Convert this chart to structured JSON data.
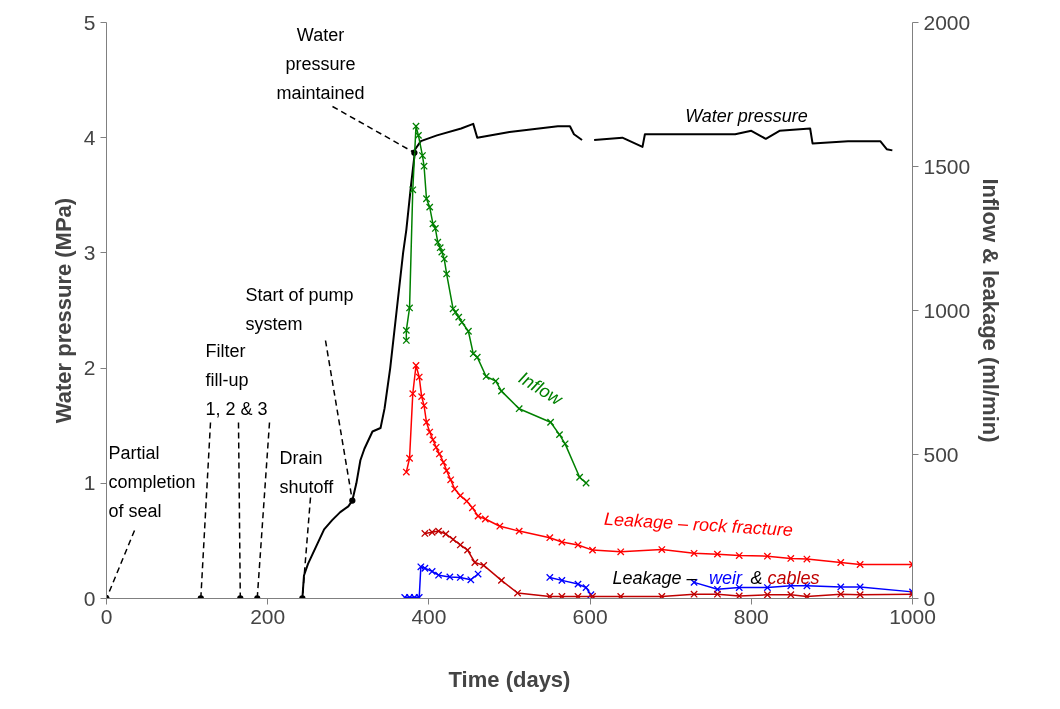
{
  "chart_data": {
    "type": "line",
    "xlabel": "Time (days)",
    "ylabel": "Water pressure (MPa)",
    "y2label": "Inflow & leakage (ml/min)",
    "xlim": [
      0,
      1000
    ],
    "xticks": [
      0,
      200,
      400,
      600,
      800,
      1000
    ],
    "ylim": [
      0,
      5
    ],
    "yticks": [
      0,
      1,
      2,
      3,
      4,
      5
    ],
    "y2lim": [
      0,
      2000
    ],
    "y2ticks": [
      0,
      500,
      1000,
      1500,
      2000
    ],
    "grid": false,
    "legend": false,
    "annotations": [
      {
        "text": "Partial\ncompletion\nof seal",
        "x": 0,
        "y": 0
      },
      {
        "text": "Filter\nfill-up\n1, 2 & 3",
        "x": 166,
        "y": 0
      },
      {
        "text": "Drain\nshutoff",
        "x": 243,
        "y": 0
      },
      {
        "text": "Start of pump\nsystem",
        "x": 305,
        "y": 0.85
      },
      {
        "text": "Water\npressure\nmaintained",
        "x": 382,
        "y": 3.87
      },
      "Leakage –",
      "&"
    ],
    "series": [
      {
        "name": "Water pressure",
        "color": "#000000",
        "type": "line",
        "marker": "none",
        "x": [
          243,
          245,
          250,
          260,
          270,
          280,
          290,
          300,
          305,
          310,
          315,
          320,
          330,
          340,
          345,
          352,
          360,
          368,
          372,
          378,
          383,
          390,
          410,
          440,
          455,
          460,
          500,
          560,
          575,
          580,
          590,
          597,
          605,
          640,
          665,
          668,
          720,
          780,
          800,
          818,
          835,
          873,
          876,
          920,
          960,
          968,
          975
        ],
        "values": [
          0,
          0.2,
          0.3,
          0.45,
          0.6,
          0.68,
          0.75,
          0.8,
          0.85,
          1.0,
          1.2,
          1.3,
          1.45,
          1.48,
          1.65,
          2.0,
          2.5,
          3.0,
          3.2,
          3.6,
          3.9,
          3.97,
          4.02,
          4.08,
          4.12,
          4.0,
          4.05,
          4.1,
          4.1,
          4.03,
          3.98,
          null,
          3.98,
          4.0,
          3.92,
          4.03,
          4.03,
          4.03,
          4.06,
          3.99,
          4.06,
          4.08,
          3.95,
          3.97,
          3.97,
          3.9,
          3.89
        ]
      },
      {
        "color": "#000000",
        "type": "scatter",
        "marker": "circle",
        "x": [
          0,
          117,
          166,
          187,
          243,
          305,
          382
        ],
        "values": [
          0,
          0,
          0,
          0,
          0,
          0.85,
          3.87
        ]
      },
      {
        "name": "Inflow",
        "color": "#008000",
        "marker": "cross",
        "axis": "y2",
        "x": [
          372,
          372,
          376,
          380,
          384,
          387,
          392,
          394,
          397,
          401,
          405,
          408,
          411,
          414,
          416,
          419,
          422,
          430,
          433,
          437,
          441,
          449,
          455,
          460,
          471,
          483,
          490,
          512,
          551,
          562,
          569,
          587,
          595
        ],
        "values": [
          896,
          931,
          1009,
          1419,
          1640,
          1608,
          1538,
          1501,
          1388,
          1359,
          1301,
          1285,
          1237,
          1218,
          1203,
          1179,
          1127,
          1006,
          994,
          977,
          959,
          928,
          850,
          838,
          771,
          755,
          720,
          659,
          612,
          569,
          537,
          421,
          401
        ]
      },
      {
        "name": "Leakage – rock fracture",
        "color": "#ff0000",
        "marker": "cross",
        "axis": "y2",
        "x": [
          372,
          376,
          380,
          384,
          388,
          391,
          394,
          397,
          401,
          405,
          409,
          413,
          418,
          422,
          427,
          432,
          439,
          447,
          454,
          461,
          470,
          488,
          512,
          550,
          565,
          585,
          603,
          638,
          689,
          729,
          758,
          785,
          820,
          849,
          869,
          911,
          935,
          1000
        ],
        "values": [
          439,
          487,
          711,
          809,
          769,
          701,
          670,
          612,
          578,
          551,
          525,
          502,
          473,
          444,
          412,
          380,
          357,
          338,
          315,
          286,
          276,
          251,
          234,
          211,
          196,
          186,
          168,
          162,
          170,
          157,
          154,
          149,
          147,
          139,
          137,
          125,
          118,
          118
        ]
      },
      {
        "name": "weir",
        "color": "#0000ff",
        "marker": "cross",
        "axis": "y2",
        "x": [
          370,
          376,
          382,
          388,
          390,
          395,
          404,
          412,
          426,
          439,
          452,
          461,
          500,
          550,
          565,
          585,
          595,
          601,
          650,
          729,
          758,
          785,
          820,
          849,
          869,
          911,
          935,
          1000
        ],
        "values": [
          4,
          4,
          4,
          4,
          110,
          105,
          94,
          81,
          75,
          73,
          65,
          85,
          null,
          73,
          63,
          50,
          38,
          13,
          null,
          56,
          32,
          38,
          38,
          44,
          44,
          40,
          40,
          23
        ]
      },
      {
        "name": "cables",
        "color": "#c00000",
        "marker": "cross",
        "axis": "y2",
        "x": [
          395,
          404,
          412,
          421,
          430,
          439,
          448,
          457,
          468,
          490,
          510,
          550,
          565,
          585,
          603,
          638,
          689,
          729,
          758,
          785,
          820,
          849,
          869,
          911,
          935,
          1000
        ],
        "values": [
          226,
          230,
          234,
          224,
          205,
          186,
          168,
          125,
          115,
          63,
          19,
          7,
          7,
          7,
          7,
          7,
          7,
          15,
          15,
          9,
          13,
          13,
          7,
          15,
          13,
          15
        ]
      }
    ]
  }
}
